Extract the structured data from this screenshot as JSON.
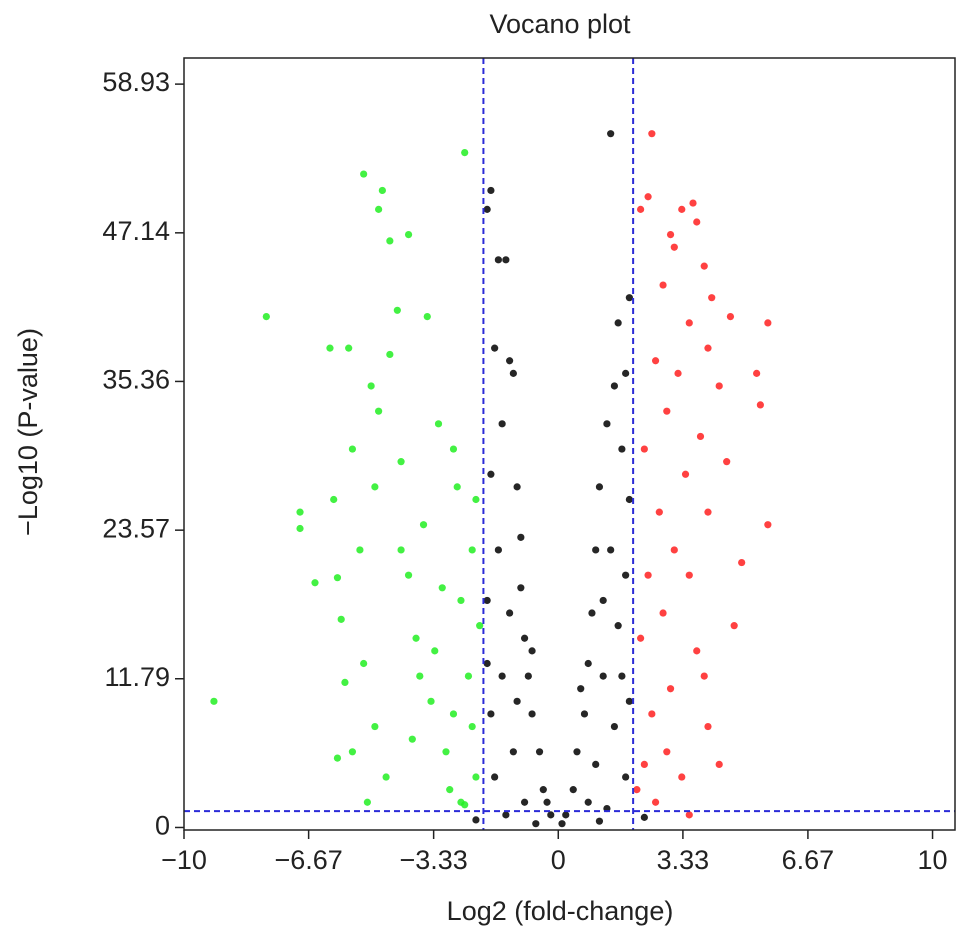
{
  "chart_data": {
    "type": "scatter",
    "title": "Vocano plot",
    "xlabel": "Log2 (fold-change)",
    "ylabel": "−Log10 (P-value)",
    "xlim": [
      -10,
      10.6
    ],
    "ylim": [
      -0.2,
      61
    ],
    "xticks": [
      {
        "value": -10,
        "label": "−10"
      },
      {
        "value": -6.67,
        "label": "−6.67"
      },
      {
        "value": -3.33,
        "label": "−3.33"
      },
      0,
      3.33,
      6.67,
      10
    ],
    "yticks": [
      0,
      11.79,
      23.57,
      35.36,
      47.14,
      58.93
    ],
    "thresholds": {
      "x": [
        -2,
        2
      ],
      "y": 1.3,
      "color": "#2b2bd8"
    },
    "series": [
      {
        "color": "#22ee22",
        "x": [
          -9.2,
          -7.8,
          -6.9,
          -6.9,
          -6.5,
          -6.0,
          -5.9,
          -6.1,
          -5.6,
          -5.8,
          -5.7,
          -5.9,
          -5.5,
          -5.5,
          -5.2,
          -5.0,
          -4.8,
          -4.7,
          -4.5,
          -4.0,
          -4.3,
          -4.5,
          -4.8,
          -4.9,
          -5.3,
          -5.2,
          -4.9,
          -5.1,
          -4.6,
          -4.2,
          -4.0,
          -3.8,
          -3.6,
          -3.4,
          -3.2,
          -3.0,
          -3.5,
          -2.7,
          -2.6,
          -2.5,
          -2.4,
          -2.3,
          -2.2,
          -2.1,
          -2.9,
          -3.1,
          -3.7,
          -2.8,
          -2.3,
          -2.6,
          -3.9,
          -4.2,
          -2.2,
          -2.8,
          -3.3,
          -2.5
        ],
        "values": [
          10,
          40.5,
          25,
          23.7,
          19.4,
          26,
          19.8,
          38,
          38,
          16.5,
          11.5,
          5.5,
          6,
          30,
          51.8,
          35,
          49,
          50.5,
          46.5,
          47,
          41,
          37.5,
          33,
          27,
          22,
          13,
          8,
          2,
          4,
          29,
          20,
          15,
          24,
          10,
          32,
          6,
          40.5,
          27,
          18,
          53.5,
          12,
          22,
          4,
          16,
          3,
          19,
          12,
          9,
          8,
          2,
          7,
          22,
          26,
          30,
          14,
          1.8
        ]
      },
      {
        "color": "#000000",
        "x": [
          -1.9,
          -1.8,
          -1.6,
          -1.4,
          -1.7,
          -1.3,
          -1.2,
          -1.5,
          -1.8,
          -1.1,
          -1.0,
          -1.6,
          -1.9,
          -1.3,
          -0.9,
          -0.8,
          -1.5,
          -1.8,
          -0.7,
          -0.5,
          -1.2,
          -1.7,
          -0.4,
          -0.9,
          -0.2,
          -1.4,
          -0.6,
          -1.1,
          -1.9,
          -0.3,
          1.4,
          1.9,
          1.6,
          1.8,
          1.5,
          1.3,
          1.7,
          1.1,
          1.9,
          1.0,
          1.4,
          1.8,
          0.9,
          1.6,
          0.8,
          1.2,
          1.9,
          0.7,
          1.5,
          0.5,
          1.0,
          1.8,
          0.4,
          0.8,
          0.2,
          1.3,
          0.1,
          1.1,
          1.2,
          0.6,
          -0.7,
          -1.0,
          1.7,
          2.3,
          -2.2
        ],
        "values": [
          49,
          50.5,
          45,
          45,
          38,
          37,
          36,
          32,
          28,
          27,
          23,
          22,
          18,
          17,
          15,
          12,
          12,
          9,
          9,
          6,
          6,
          4,
          3,
          2,
          1,
          1,
          0.3,
          10,
          13,
          2,
          55,
          42,
          40,
          36,
          35,
          32,
          30,
          27,
          26,
          22,
          22,
          20,
          17,
          16,
          13,
          12,
          10,
          9,
          8,
          6,
          5,
          4,
          3,
          2,
          1,
          1.5,
          0.3,
          0.5,
          18,
          11,
          14,
          19,
          12,
          0.8,
          0.6
        ]
      },
      {
        "color": "#ff2020",
        "x": [
          2.2,
          2.4,
          2.5,
          3.0,
          3.3,
          3.6,
          3.7,
          3.1,
          3.9,
          2.8,
          4.1,
          3.5,
          4.6,
          5.6,
          4.0,
          2.6,
          3.2,
          4.3,
          5.3,
          5.4,
          2.9,
          3.8,
          2.3,
          4.5,
          3.4,
          2.7,
          4.0,
          5.6,
          3.1,
          2.4,
          3.5,
          4.9,
          2.8,
          4.7,
          2.2,
          3.7,
          3.0,
          2.5,
          4.0,
          2.3,
          3.3,
          4.3,
          2.6,
          3.5,
          2.1,
          3.9,
          2.9
        ],
        "values": [
          49,
          50,
          55,
          47,
          49,
          49.5,
          48,
          46,
          44.5,
          43,
          42,
          40,
          40.5,
          40,
          38,
          37,
          36,
          35,
          36,
          33.5,
          33,
          31,
          30,
          29,
          28,
          25,
          25,
          24,
          22,
          20,
          20,
          21,
          17,
          16,
          15,
          14,
          11,
          9,
          8,
          5,
          4,
          5,
          2,
          1,
          3,
          12,
          6
        ]
      }
    ]
  }
}
